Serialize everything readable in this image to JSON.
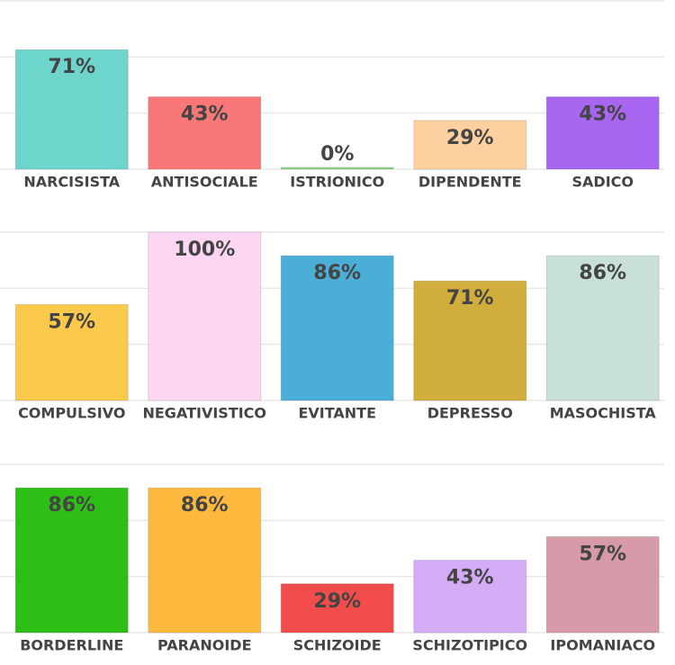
{
  "chart_data": [
    {
      "type": "bar",
      "categories": [
        "NARCISISTA",
        "ANTISOCIALE",
        "ISTRIONICO",
        "DIPENDENTE",
        "SADICO"
      ],
      "values": [
        71,
        43,
        0,
        29,
        43
      ],
      "value_labels": [
        "71%",
        "43%",
        "0%",
        "29%",
        "43%"
      ],
      "colors": [
        "#6dd5cc",
        "#f97777",
        "#8fd88a",
        "#fdd0a0",
        "#a765f0"
      ],
      "ylim": [
        0,
        100
      ],
      "grid": true
    },
    {
      "type": "bar",
      "categories": [
        "COMPULSIVO",
        "NEGATIVISTICO",
        "EVITANTE",
        "DEPRESSO",
        "MASOCHISTA"
      ],
      "values": [
        57,
        100,
        86,
        71,
        86
      ],
      "value_labels": [
        "57%",
        "100%",
        "86%",
        "71%",
        "86%"
      ],
      "colors": [
        "#fbc94c",
        "#fcd6f2",
        "#4aaed6",
        "#d0ad3c",
        "#c8e0d6"
      ],
      "ylim": [
        0,
        100
      ],
      "grid": true
    },
    {
      "type": "bar",
      "categories": [
        "BORDERLINE",
        "PARANOIDE",
        "SCHIZOIDE",
        "SCHIZOTIPICO",
        "IPOMANIACO"
      ],
      "values": [
        86,
        86,
        29,
        43,
        57
      ],
      "value_labels": [
        "86%",
        "86%",
        "29%",
        "43%",
        "57%"
      ],
      "colors": [
        "#2dbf16",
        "#fdb93e",
        "#f24c4c",
        "#d3acf5",
        "#d69aa8"
      ],
      "ylim": [
        0,
        100
      ],
      "grid": true
    }
  ]
}
